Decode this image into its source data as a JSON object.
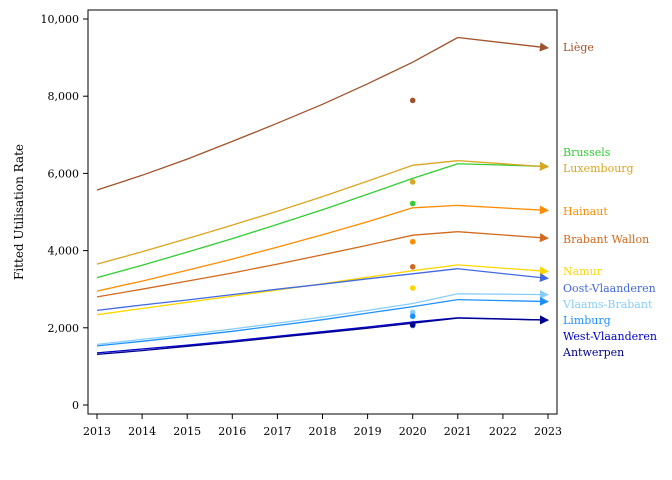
{
  "chart_data": {
    "type": "line",
    "ylabel": "Fitted Utilisation Rate",
    "xlabel": "",
    "xlim": [
      2013,
      2023
    ],
    "ylim": [
      0,
      10000
    ],
    "x_ticks": [
      "2013",
      "2014",
      "2015",
      "2016",
      "2017",
      "2018",
      "2019",
      "2020",
      "2021",
      "2022",
      "2023"
    ],
    "y_ticks": [
      {
        "value": 0,
        "label": "0"
      },
      {
        "value": 2000,
        "label": "2,000"
      },
      {
        "value": 4000,
        "label": "4,000"
      },
      {
        "value": 6000,
        "label": "6,000"
      },
      {
        "value": 8000,
        "label": "8,000"
      },
      {
        "value": 10000,
        "label": "10,000"
      }
    ],
    "grid": false,
    "legend": "direct labels at right",
    "x": [
      2013,
      2014,
      2015,
      2016,
      2017,
      2018,
      2019,
      2020,
      2021,
      2023
    ],
    "series": [
      {
        "name": "Liège",
        "color": "#a0522d",
        "values": [
          5570,
          5950,
          6370,
          6830,
          7300,
          7790,
          8320,
          8880,
          9520,
          9250
        ],
        "observed_2020": 7890
      },
      {
        "name": "Brussels",
        "color": "#32cd32",
        "values": [
          3300,
          3620,
          3960,
          4310,
          4680,
          5060,
          5460,
          5870,
          6250,
          6180
        ],
        "observed_2020": 5220
      },
      {
        "name": "Luxembourg",
        "color": "#daa520",
        "values": [
          3650,
          3970,
          4310,
          4660,
          5020,
          5400,
          5800,
          6210,
          6330,
          6170
        ],
        "observed_2020": 5780
      },
      {
        "name": "Hainaut",
        "color": "#ff8c00",
        "values": [
          2950,
          3210,
          3490,
          3780,
          4090,
          4410,
          4750,
          5110,
          5170,
          5040
        ],
        "observed_2020": 4230
      },
      {
        "name": "Brabant Wallon",
        "color": "#d2691e",
        "values": [
          2800,
          3000,
          3210,
          3420,
          3650,
          3890,
          4140,
          4400,
          4490,
          4320
        ],
        "observed_2020": 3580
      },
      {
        "name": "Namur",
        "color": "#ffd700",
        "values": [
          2340,
          2500,
          2660,
          2820,
          2980,
          3140,
          3310,
          3480,
          3630,
          3460
        ],
        "observed_2020": 3030
      },
      {
        "name": "Oost-Vlaanderen",
        "color": "#4169e1",
        "values": [
          2450,
          2590,
          2720,
          2860,
          3000,
          3130,
          3270,
          3400,
          3530,
          3280
        ],
        "observed_2020": 2060
      },
      {
        "name": "Vlaams-Brabant",
        "color": "#87cefa",
        "values": [
          1570,
          1700,
          1830,
          1970,
          2120,
          2280,
          2450,
          2630,
          2880,
          2860
        ],
        "observed_2020": 2400
      },
      {
        "name": "Limburg",
        "color": "#1e90ff",
        "values": [
          1530,
          1650,
          1780,
          1910,
          2060,
          2210,
          2380,
          2550,
          2730,
          2680
        ],
        "observed_2020": 2300
      },
      {
        "name": "West-Vlaanderen",
        "color": "#0000cd",
        "values": [
          1350,
          1450,
          1550,
          1660,
          1780,
          1900,
          2020,
          2150,
          2260,
          2200
        ],
        "observed_2020": 2100
      },
      {
        "name": "Antwerpen",
        "color": "#00008b",
        "values": [
          1310,
          1410,
          1520,
          1630,
          1750,
          1870,
          1990,
          2120,
          2250,
          2200
        ],
        "observed_2020": 2080
      }
    ],
    "labels": [
      {
        "text": "Liège",
        "color": "#a0522d"
      },
      {
        "text": "Brussels",
        "color": "#32cd32"
      },
      {
        "text": "Luxembourg",
        "color": "#daa520"
      },
      {
        "text": "Hainaut",
        "color": "#ff8c00"
      },
      {
        "text": "Brabant Wallon",
        "color": "#d2691e"
      },
      {
        "text": "Namur",
        "color": "#ffd700"
      },
      {
        "text": "Oost-Vlaanderen",
        "color": "#4169e1"
      },
      {
        "text": "Vlaams-Brabant",
        "color": "#87cefa"
      },
      {
        "text": "Limburg",
        "color": "#1e90ff"
      },
      {
        "text": "West-Vlaanderen",
        "color": "#0000cd"
      },
      {
        "text": "Antwerpen",
        "color": "#00008b"
      }
    ]
  }
}
